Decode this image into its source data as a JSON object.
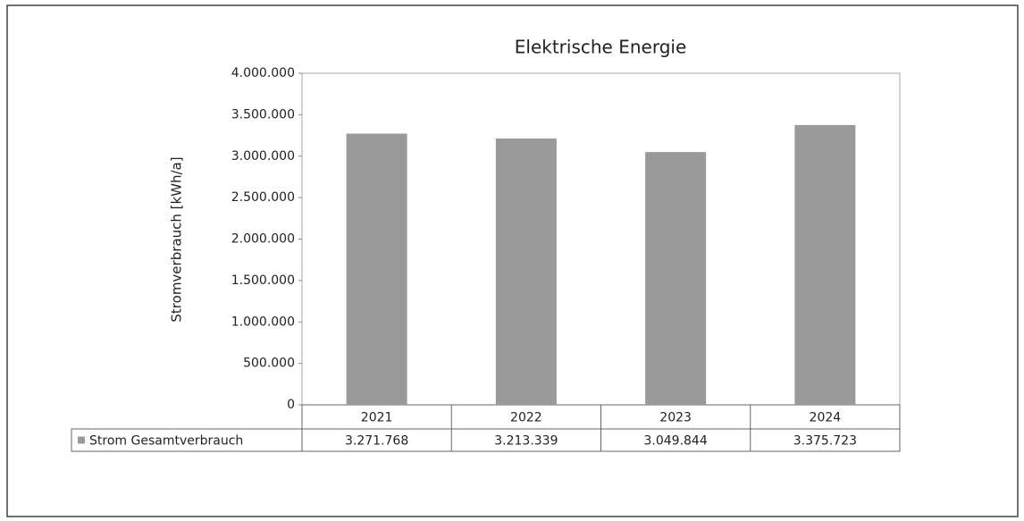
{
  "chart_data": {
    "type": "bar",
    "title": "Elektrische Energie",
    "y_label": "Stromverbrauch [kWh/a]",
    "categories": [
      "2021",
      "2022",
      "2023",
      "2024"
    ],
    "series": [
      {
        "name": "Strom Gesamtverbrauch",
        "color": "#9a9a9a",
        "values": [
          3271768,
          3213339,
          3049844,
          3375723
        ],
        "value_labels": [
          "3.271.768",
          "3.213.339",
          "3.049.844",
          "3.375.723"
        ]
      }
    ],
    "ylim": [
      0,
      4000000
    ],
    "yticks": [
      0,
      {
        "value": 500000,
        "label": "500.000"
      },
      {
        "value": 1000000,
        "label": "1.000.000"
      },
      {
        "value": 1500000,
        "label": "1.500.000"
      },
      {
        "value": 2000000,
        "label": "2.000.000"
      },
      {
        "value": 2500000,
        "label": "2.500.000"
      },
      {
        "value": 3000000,
        "label": "3.000.000"
      },
      {
        "value": 3500000,
        "label": "3.500.000"
      },
      {
        "value": 4000000,
        "label": "4.000.000"
      }
    ]
  }
}
